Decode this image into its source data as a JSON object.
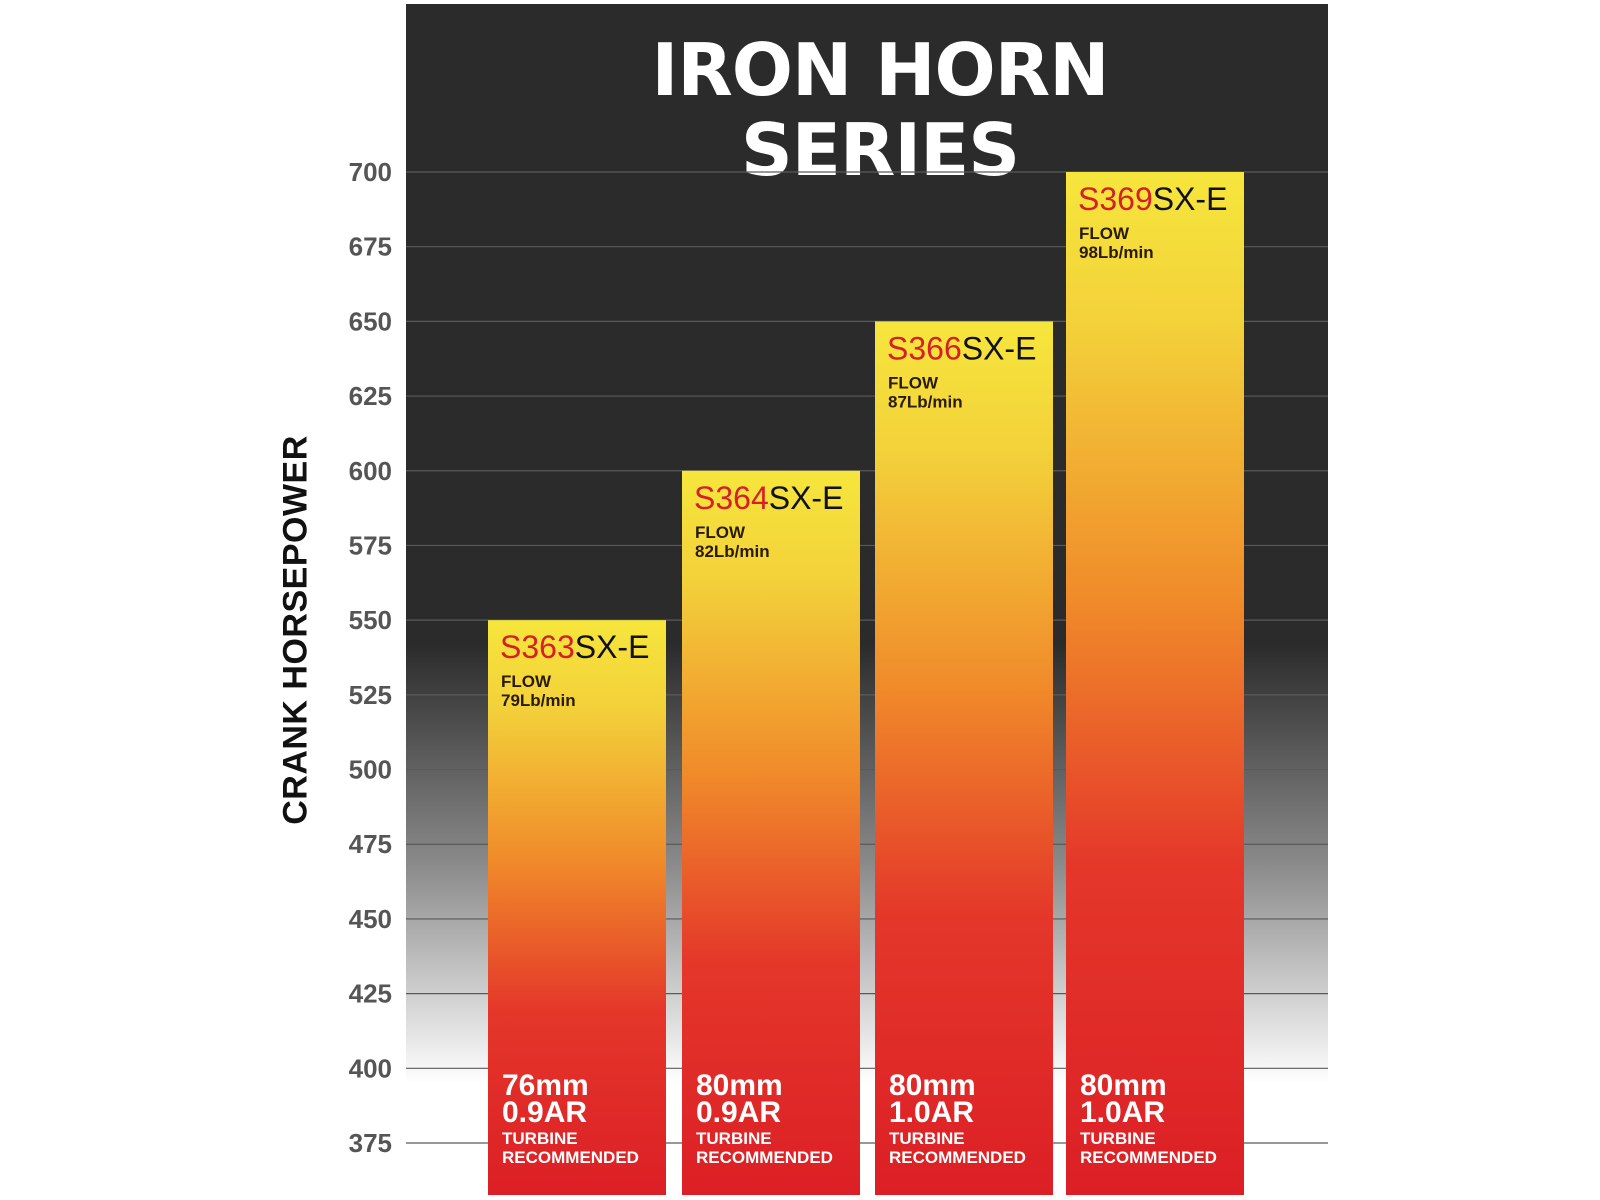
{
  "chart_data": {
    "type": "bar",
    "title": "IRON HORN SERIES",
    "xlabel": "",
    "ylabel": "CRANK HORSEPOWER",
    "ylim": [
      375,
      700
    ],
    "yticks": [
      "700",
      "675",
      "650",
      "625",
      "600",
      "575",
      "550",
      "525",
      "500",
      "475",
      "450",
      "425",
      "400",
      "375"
    ],
    "grid": true,
    "categories": [
      "S363SX-E",
      "S364SX-E",
      "S366SX-E",
      "S369SX-E"
    ],
    "values": [
      550,
      600,
      650,
      700
    ],
    "bars": [
      {
        "model_code": "S363",
        "model_suffix": "SX-E",
        "flow_label": "FLOW",
        "flow_value": "79Lb/min",
        "turbine_size": "76mm",
        "turbine_ar": "0.9AR",
        "turbine_label": "TURBINE",
        "turbine_note": "RECOMMENDED"
      },
      {
        "model_code": "S364",
        "model_suffix": "SX-E",
        "flow_label": "FLOW",
        "flow_value": "82Lb/min",
        "turbine_size": "80mm",
        "turbine_ar": "0.9AR",
        "turbine_label": "TURBINE",
        "turbine_note": "RECOMMENDED"
      },
      {
        "model_code": "S366",
        "model_suffix": "SX-E",
        "flow_label": "FLOW",
        "flow_value": "87Lb/min",
        "turbine_size": "80mm",
        "turbine_ar": "1.0AR",
        "turbine_label": "TURBINE",
        "turbine_note": "RECOMMENDED"
      },
      {
        "model_code": "S369",
        "model_suffix": "SX-E",
        "flow_label": "FLOW",
        "flow_value": "98Lb/min",
        "turbine_size": "80mm",
        "turbine_ar": "1.0AR",
        "turbine_label": "TURBINE",
        "turbine_note": "RECOMMENDED"
      }
    ],
    "colors": {
      "bar_top": "#f5e63a",
      "bar_mid": "#f08a2a",
      "bar_bottom": "#dc1f26",
      "model_code": "#d61f26",
      "panel": "#2b2b2b"
    }
  }
}
